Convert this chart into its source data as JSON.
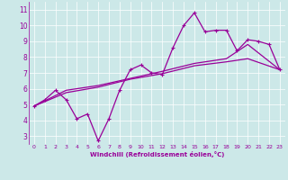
{
  "xlabel": "Windchill (Refroidissement éolien,°C)",
  "background_color": "#cce8e8",
  "line_color": "#990099",
  "xlim": [
    -0.5,
    23.5
  ],
  "ylim": [
    2.5,
    11.5
  ],
  "xticks": [
    0,
    1,
    2,
    3,
    4,
    5,
    6,
    7,
    8,
    9,
    10,
    11,
    12,
    13,
    14,
    15,
    16,
    17,
    18,
    19,
    20,
    21,
    22,
    23
  ],
  "yticks": [
    3,
    4,
    5,
    6,
    7,
    8,
    9,
    10,
    11
  ],
  "series1_x": [
    0,
    1,
    2,
    3,
    4,
    5,
    6,
    7,
    8,
    9,
    10,
    11,
    12,
    13,
    14,
    15,
    16,
    17,
    18,
    19,
    20,
    21,
    22,
    23
  ],
  "series1_y": [
    4.9,
    5.3,
    5.9,
    5.3,
    4.1,
    4.4,
    2.7,
    4.1,
    5.9,
    7.2,
    7.5,
    7.0,
    6.9,
    8.6,
    10.0,
    10.8,
    9.6,
    9.7,
    9.7,
    8.4,
    9.1,
    9.0,
    8.8,
    7.2
  ],
  "series2_x": [
    0,
    3,
    6,
    9,
    12,
    15,
    18,
    20,
    23
  ],
  "series2_y": [
    4.9,
    5.9,
    6.2,
    6.65,
    7.1,
    7.6,
    7.9,
    8.8,
    7.2
  ],
  "series3_x": [
    0,
    3,
    6,
    9,
    12,
    15,
    18,
    20,
    23
  ],
  "series3_y": [
    4.9,
    5.75,
    6.1,
    6.6,
    6.95,
    7.45,
    7.7,
    7.9,
    7.2
  ]
}
